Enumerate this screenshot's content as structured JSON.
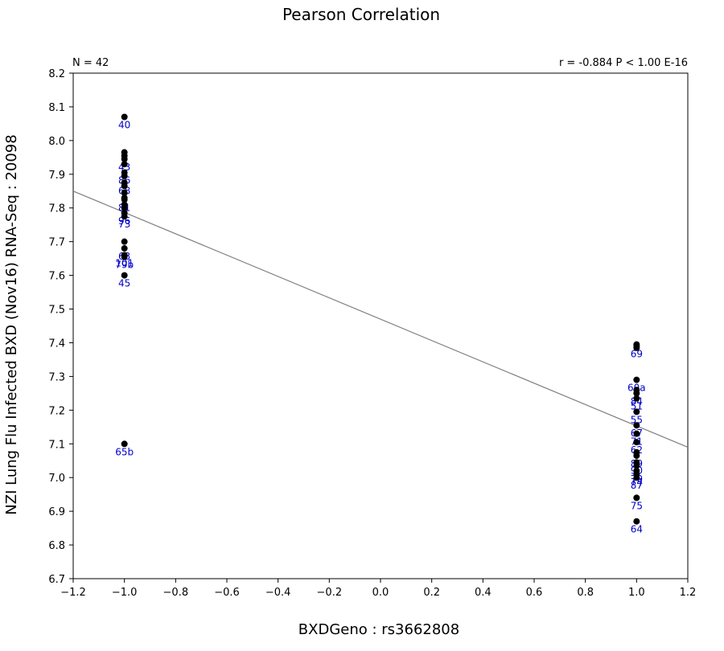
{
  "chart_data": {
    "type": "scatter",
    "title": "Pearson Correlation",
    "xlabel": "BXDGeno : rs3662808",
    "ylabel": "NZI Lung Flu Infected BXD (Nov16) RNA-Seq : 20098",
    "n_label": "N = 42",
    "stats_label": "r = -0.884 P < 1.00 E-16",
    "xlim": [
      -1.2,
      1.2
    ],
    "ylim": [
      6.7,
      8.2
    ],
    "x_ticks": [
      "-1.2",
      "-1.0",
      "-0.8",
      "-0.6",
      "-0.4",
      "-0.2",
      "0.0",
      "0.2",
      "0.4",
      "0.6",
      "0.8",
      "1.0",
      "1.2"
    ],
    "y_ticks": [
      "6.7",
      "6.8",
      "6.9",
      "7.0",
      "7.1",
      "7.2",
      "7.3",
      "7.4",
      "7.5",
      "7.6",
      "7.7",
      "7.8",
      "7.9",
      "8.0",
      "8.1",
      "8.2"
    ],
    "regression_line": {
      "x": [
        -1.2,
        1.2
      ],
      "y": [
        7.85,
        7.09
      ]
    },
    "grid": false,
    "point_color": "#000000",
    "label_color": "#0000cc",
    "line_color": "#808080",
    "points": [
      {
        "x": -1.0,
        "y": 8.07,
        "label": "40"
      },
      {
        "x": -1.0,
        "y": 7.965,
        "label": ""
      },
      {
        "x": -1.0,
        "y": 7.955,
        "label": ""
      },
      {
        "x": -1.0,
        "y": 7.945,
        "label": "43"
      },
      {
        "x": -1.0,
        "y": 7.93,
        "label": ""
      },
      {
        "x": -1.0,
        "y": 7.905,
        "label": "86"
      },
      {
        "x": -1.0,
        "y": 7.895,
        "label": ""
      },
      {
        "x": -1.0,
        "y": 7.875,
        "label": "68"
      },
      {
        "x": -1.0,
        "y": 7.865,
        "label": ""
      },
      {
        "x": -1.0,
        "y": 7.845,
        "label": ""
      },
      {
        "x": -1.0,
        "y": 7.83,
        "label": ""
      },
      {
        "x": -1.0,
        "y": 7.825,
        "label": "81"
      },
      {
        "x": -1.0,
        "y": 7.81,
        "label": ""
      },
      {
        "x": -1.0,
        "y": 7.8,
        "label": ""
      },
      {
        "x": -1.0,
        "y": 7.785,
        "label": "96"
      },
      {
        "x": -1.0,
        "y": 7.775,
        "label": "73"
      },
      {
        "x": -1.0,
        "y": 7.7,
        "label": ""
      },
      {
        "x": -1.0,
        "y": 7.68,
        "label": "63"
      },
      {
        "x": -1.0,
        "y": 7.66,
        "label": "101"
      },
      {
        "x": -1.0,
        "y": 7.655,
        "label": "79b"
      },
      {
        "x": -1.0,
        "y": 7.6,
        "label": "45"
      },
      {
        "x": -1.0,
        "y": 7.1,
        "label": "65b"
      },
      {
        "x": 1.0,
        "y": 7.395,
        "label": ""
      },
      {
        "x": 1.0,
        "y": 7.39,
        "label": "69"
      },
      {
        "x": 1.0,
        "y": 7.385,
        "label": ""
      },
      {
        "x": 1.0,
        "y": 7.29,
        "label": "60a"
      },
      {
        "x": 1.0,
        "y": 7.26,
        "label": ""
      },
      {
        "x": 1.0,
        "y": 7.25,
        "label": "84"
      },
      {
        "x": 1.0,
        "y": 7.235,
        "label": "51"
      },
      {
        "x": 1.0,
        "y": 7.195,
        "label": "55"
      },
      {
        "x": 1.0,
        "y": 7.155,
        "label": "67"
      },
      {
        "x": 1.0,
        "y": 7.13,
        "label": "71"
      },
      {
        "x": 1.0,
        "y": 7.105,
        "label": "62"
      },
      {
        "x": 1.0,
        "y": 7.075,
        "label": ""
      },
      {
        "x": 1.0,
        "y": 7.065,
        "label": "89"
      },
      {
        "x": 1.0,
        "y": 7.045,
        "label": "90"
      },
      {
        "x": 1.0,
        "y": 7.035,
        "label": ""
      },
      {
        "x": 1.0,
        "y": 7.02,
        "label": "70"
      },
      {
        "x": 1.0,
        "y": 7.01,
        "label": "74"
      },
      {
        "x": 1.0,
        "y": 7.0,
        "label": "87"
      },
      {
        "x": 1.0,
        "y": 6.94,
        "label": "75"
      },
      {
        "x": 1.0,
        "y": 6.87,
        "label": "64"
      }
    ]
  }
}
